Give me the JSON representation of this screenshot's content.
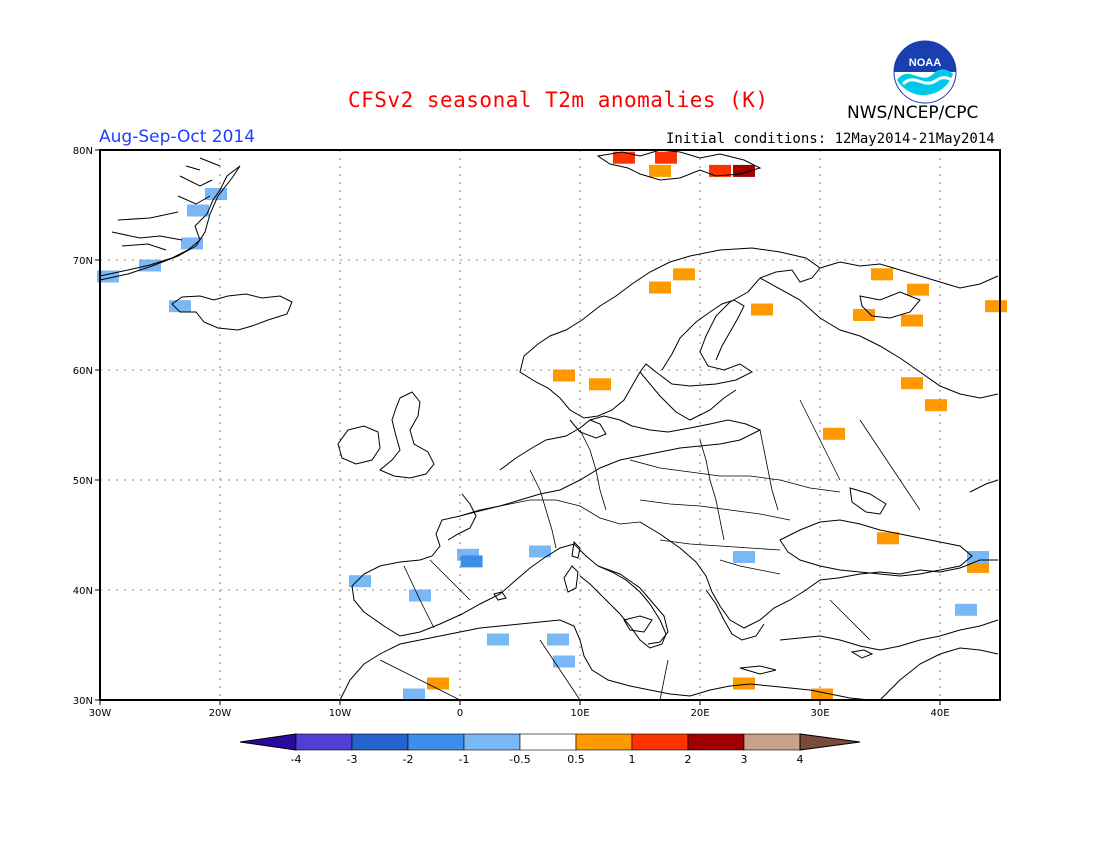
{
  "title": "CFSv2 seasonal T2m anomalies (K)",
  "season": "Aug-Sep-Oct 2014",
  "initial_conditions": "Initial conditions: 12May2014-21May2014",
  "organization": "NWS/NCEP/CPC",
  "logo_text": "NOAA",
  "colors": {
    "title": "#ff0000",
    "season": "#1f3fff",
    "map_line": "#000000",
    "grid": "#888888"
  },
  "axes": {
    "lon_labels": [
      "30W",
      "20W",
      "10W",
      "0",
      "10E",
      "20E",
      "30E",
      "40E"
    ],
    "lat_labels": [
      "30N",
      "40N",
      "50N",
      "60N",
      "70N",
      "80N"
    ]
  },
  "colorbar": {
    "labels": [
      "-4",
      "-3",
      "-2",
      "-1",
      "-0.5",
      "0.5",
      "1",
      "2",
      "3",
      "4"
    ],
    "colors": [
      "#2a0a9c",
      "#4f3fd6",
      "#2563cc",
      "#3d8ee8",
      "#7ab8f5",
      "#ffffff",
      "#ff9900",
      "#ff3300",
      "#a00000",
      "#c8a08c",
      "#7a4a3a"
    ]
  },
  "anomaly_cells": [
    {
      "lon": -29.5,
      "lat": 68.5,
      "color": "#7ab8f5"
    },
    {
      "lon": -26,
      "lat": 69.5,
      "color": "#7ab8f5"
    },
    {
      "lon": -22.5,
      "lat": 71.5,
      "color": "#7ab8f5"
    },
    {
      "lon": -22,
      "lat": 74.5,
      "color": "#7ab8f5"
    },
    {
      "lon": -20.5,
      "lat": 76,
      "color": "#7ab8f5"
    },
    {
      "lon": -23.5,
      "lat": 65.8,
      "color": "#7ab8f5"
    },
    {
      "lon": 13.5,
      "lat": 79.3,
      "color": "#ff3300"
    },
    {
      "lon": 17,
      "lat": 79.3,
      "color": "#ff3300"
    },
    {
      "lon": 21.5,
      "lat": 78.1,
      "color": "#ff3300"
    },
    {
      "lon": 23.5,
      "lat": 78.1,
      "color": "#a00000"
    },
    {
      "lon": 16.5,
      "lat": 78.1,
      "color": "#ff9900"
    },
    {
      "lon": 18.5,
      "lat": 68.7,
      "color": "#ff9900"
    },
    {
      "lon": 16.5,
      "lat": 67.5,
      "color": "#ff9900"
    },
    {
      "lon": 25,
      "lat": 65.5,
      "color": "#ff9900"
    },
    {
      "lon": 35,
      "lat": 68.7,
      "color": "#ff9900"
    },
    {
      "lon": 38,
      "lat": 67.3,
      "color": "#ff9900"
    },
    {
      "lon": 33.5,
      "lat": 65,
      "color": "#ff9900"
    },
    {
      "lon": 37.5,
      "lat": 64.5,
      "color": "#ff9900"
    },
    {
      "lon": 44.5,
      "lat": 65.8,
      "color": "#ff9900"
    },
    {
      "lon": 8.5,
      "lat": 59.5,
      "color": "#ff9900"
    },
    {
      "lon": 11.5,
      "lat": 58.7,
      "color": "#ff9900"
    },
    {
      "lon": 37.5,
      "lat": 58.8,
      "color": "#ff9900"
    },
    {
      "lon": 39.5,
      "lat": 56.8,
      "color": "#ff9900"
    },
    {
      "lon": 31,
      "lat": 54.2,
      "color": "#ff9900"
    },
    {
      "lon": 35.5,
      "lat": 44.7,
      "color": "#ff9900"
    },
    {
      "lon": 43,
      "lat": 42.1,
      "color": "#ff9900"
    },
    {
      "lon": -2,
      "lat": 31.5,
      "color": "#ff9900"
    },
    {
      "lon": 23.5,
      "lat": 31.5,
      "color": "#ff9900"
    },
    {
      "lon": 30,
      "lat": 30.5,
      "color": "#ff9900"
    },
    {
      "lon": 0.5,
      "lat": 43.2,
      "color": "#7ab8f5"
    },
    {
      "lon": 0.8,
      "lat": 42.6,
      "color": "#3d8ee8"
    },
    {
      "lon": 6.5,
      "lat": 43.5,
      "color": "#7ab8f5"
    },
    {
      "lon": -3.5,
      "lat": 39.5,
      "color": "#7ab8f5"
    },
    {
      "lon": -8.5,
      "lat": 40.8,
      "color": "#7ab8f5"
    },
    {
      "lon": 3,
      "lat": 35.5,
      "color": "#7ab8f5"
    },
    {
      "lon": 8,
      "lat": 35.5,
      "color": "#7ab8f5"
    },
    {
      "lon": 8.5,
      "lat": 33.5,
      "color": "#7ab8f5"
    },
    {
      "lon": 23.5,
      "lat": 43,
      "color": "#7ab8f5"
    },
    {
      "lon": 43,
      "lat": 43,
      "color": "#7ab8f5"
    },
    {
      "lon": 42,
      "lat": 38.2,
      "color": "#7ab8f5"
    },
    {
      "lon": -4,
      "lat": 30.5,
      "color": "#7ab8f5"
    }
  ]
}
